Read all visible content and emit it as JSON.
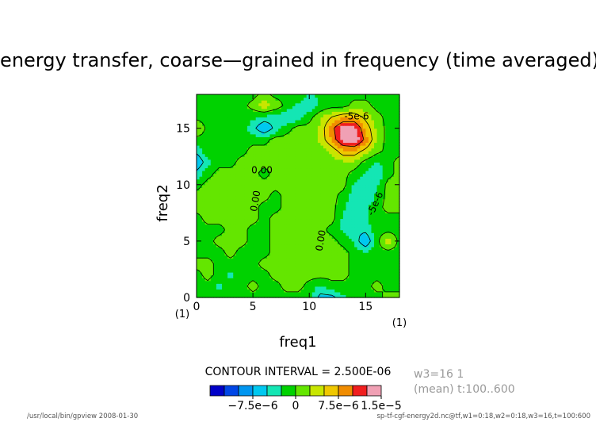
{
  "chart_data": {
    "type": "heatmap",
    "title": "energy transfer, coarse—grained in frequency (time averaged)",
    "xlabel": "freq1",
    "ylabel": "freq2",
    "xlim": [
      0,
      18
    ],
    "ylim": [
      0,
      18
    ],
    "x_ticks": [
      "0",
      "5",
      "10",
      "15"
    ],
    "y_ticks": [
      "0",
      "5",
      "10",
      "15"
    ],
    "x_tick_values": [
      0,
      5,
      10,
      15
    ],
    "y_tick_values": [
      0,
      5,
      10,
      15
    ],
    "x_axis_note": "(1)",
    "x_axis_note_right": "(1)",
    "contour_interval_text": "CONTOUR INTERVAL = 2.500E-06",
    "contour_labels": [
      "-5e-6",
      "0.00",
      "0.00",
      "0.00",
      "-5e-6"
    ],
    "colorbar": {
      "colors": [
        "#0000c8",
        "#0046e6",
        "#0096f0",
        "#00c8f0",
        "#14e6b4",
        "#00d200",
        "#64e600",
        "#c8e600",
        "#f0c800",
        "#f08c00",
        "#f01e1e",
        "#f0a0b4"
      ],
      "tick_labels": [
        "−7.5e−6",
        "0",
        "7.5e−6",
        "1.5e−5"
      ],
      "tick_values": [
        -7.5e-06,
        0,
        7.5e-06,
        1.5e-05
      ],
      "bounds": [
        -1.5e-05,
        -1.25e-05,
        -1e-05,
        -7.5e-06,
        -5e-06,
        -2.5e-06,
        0,
        2.5e-06,
        5e-06,
        7.5e-06,
        1e-05,
        1.25e-05,
        1.5e-05
      ]
    },
    "grid": false,
    "values_note": "grid values approximate, in energy transfer units",
    "x": [
      0,
      1,
      2,
      3,
      4,
      5,
      6,
      7,
      8,
      9,
      10,
      11,
      12,
      13,
      14,
      15,
      16,
      17,
      18
    ],
    "y": [
      0,
      1,
      2,
      3,
      4,
      5,
      6,
      7,
      8,
      9,
      10,
      11,
      12,
      13,
      14,
      15,
      16,
      17,
      18
    ],
    "z": [
      [
        -1e-06,
        -1e-06,
        -1e-06,
        -2e-06,
        -2e-06,
        -1e-06,
        -1e-06,
        -1e-06,
        -1e-06,
        -1e-06,
        -2e-06,
        -6e-06,
        -6e-06,
        -3e-06,
        -2e-06,
        -2e-06,
        -1e-06,
        1e-06,
        1e-06
      ],
      [
        -1e-06,
        -1e-06,
        -3e-06,
        -1e-06,
        -1e-06,
        1e-06,
        -1e-06,
        -1e-06,
        1e-06,
        1e-06,
        -1e-06,
        -3e-06,
        -1e-06,
        -1e-06,
        -1e-06,
        -1e-06,
        1e-06,
        -1e-06,
        -1e-06
      ],
      [
        -1e-06,
        1e-06,
        -1e-06,
        -3e-06,
        -1e-06,
        -1e-06,
        -1e-06,
        1e-06,
        1e-06,
        1e-06,
        1e-06,
        1e-06,
        1e-06,
        1e-06,
        -1e-06,
        -1e-06,
        -1e-06,
        -1e-06,
        -1e-06
      ],
      [
        1e-06,
        1e-06,
        -1e-06,
        -1e-06,
        -1e-06,
        -1e-06,
        1e-06,
        1e-06,
        1e-06,
        1e-06,
        1e-06,
        1e-06,
        1e-06,
        1e-06,
        -1e-06,
        -1e-06,
        -1e-06,
        -1e-06,
        -1e-06
      ],
      [
        -1e-06,
        -1e-06,
        -1e-06,
        1e-06,
        -1e-06,
        -1e-06,
        -1e-06,
        1e-06,
        1e-06,
        1e-06,
        1e-06,
        1e-06,
        1e-06,
        1e-06,
        -1e-06,
        -2e-06,
        -1e-06,
        -1e-06,
        -1e-06
      ],
      [
        -1e-06,
        -1e-06,
        1e-06,
        1e-06,
        1e-06,
        -1e-06,
        -1e-06,
        1e-06,
        1e-06,
        1e-06,
        1e-06,
        1e-06,
        1e-06,
        -1e-06,
        -3e-06,
        -8e-06,
        -1e-06,
        4e-06,
        -1e-06
      ],
      [
        -1e-06,
        -1e-06,
        -1e-06,
        1e-06,
        1e-06,
        -1e-06,
        -1e-06,
        1e-06,
        1e-06,
        1e-06,
        1e-06,
        1e-06,
        -1e-06,
        -3e-06,
        -5e-06,
        -4e-06,
        -1e-06,
        -1e-06,
        -1e-06
      ],
      [
        -1e-06,
        1e-06,
        1e-06,
        1e-06,
        1e-06,
        1e-06,
        -1e-06,
        1e-06,
        1e-06,
        1e-06,
        1e-06,
        1e-06,
        1e-06,
        -3e-06,
        -5e-06,
        -3e-06,
        -1e-06,
        -1e-06,
        -1e-06
      ],
      [
        1e-06,
        1e-06,
        1e-06,
        1e-06,
        1e-06,
        1e-06,
        -1e-06,
        -1e-06,
        1e-06,
        1e-06,
        1e-06,
        1e-06,
        1e-06,
        -2e-06,
        -5e-06,
        -3e-06,
        -1e-06,
        1e-06,
        1e-06
      ],
      [
        1e-06,
        1e-06,
        1e-06,
        1e-06,
        1e-06,
        1e-06,
        1e-06,
        -1e-06,
        1e-06,
        1e-06,
        1e-06,
        1e-06,
        1e-06,
        -1e-06,
        -4e-06,
        -5e-06,
        -2e-06,
        1e-06,
        1e-06
      ],
      [
        -1e-06,
        1e-06,
        1e-06,
        1e-06,
        1e-06,
        1e-06,
        1e-06,
        1e-06,
        1e-06,
        1e-06,
        1e-06,
        1e-06,
        1e-06,
        1e-06,
        -3e-06,
        -5e-06,
        -3e-06,
        1e-06,
        1e-06
      ],
      [
        -4e-06,
        -1e-06,
        1e-06,
        1e-06,
        1e-06,
        1e-06,
        -1e-06,
        1e-06,
        1e-06,
        1e-06,
        1e-06,
        1e-06,
        1e-06,
        1e-06,
        -1e-06,
        -3e-06,
        -5e-06,
        -1e-06,
        1e-06
      ],
      [
        -8e-06,
        -3e-06,
        -1e-06,
        -1e-06,
        1e-06,
        1e-06,
        1e-06,
        1e-06,
        1e-06,
        1e-06,
        1e-06,
        1e-06,
        1e-06,
        2e-06,
        2e-06,
        -1e-06,
        -3e-06,
        -1e-06,
        1e-06
      ],
      [
        -4e-06,
        -1e-06,
        -1e-06,
        -1e-06,
        -1e-06,
        1e-06,
        1e-06,
        1e-06,
        1e-06,
        1e-06,
        1e-06,
        1e-06,
        3e-06,
        7e-06,
        7e-06,
        4e-06,
        1e-06,
        -1e-06,
        -1e-06
      ],
      [
        -1e-06,
        -1e-06,
        -1e-06,
        -1e-06,
        -1e-06,
        -1e-06,
        -1e-06,
        1e-06,
        1e-06,
        1e-06,
        1e-06,
        3e-06,
        8e-06,
        1.35e-05,
        1.5e-05,
        9e-06,
        2e-06,
        -1e-06,
        -1e-06
      ],
      [
        3e-06,
        -1e-06,
        -1e-06,
        -1e-06,
        -1e-06,
        -4e-06,
        -8e-06,
        -4e-06,
        -1e-06,
        1e-06,
        1e-06,
        3e-06,
        9e-06,
        1.4e-05,
        1.4e-05,
        7e-06,
        2e-06,
        -1e-06,
        -1e-06
      ],
      [
        -1e-06,
        -1e-06,
        -1e-06,
        -1e-06,
        -1e-06,
        -2e-06,
        -3e-06,
        -4e-06,
        -5e-06,
        -4e-06,
        -1e-06,
        2e-06,
        5e-06,
        7e-06,
        7e-06,
        4e-06,
        1e-06,
        -1e-06,
        -1e-06
      ],
      [
        -1e-06,
        -1e-06,
        -1e-06,
        -1e-06,
        -1e-06,
        1e-06,
        4e-06,
        2e-06,
        -1e-06,
        -3e-06,
        -4e-06,
        -2e-06,
        -1e-06,
        -1e-06,
        1e-06,
        1e-06,
        -1e-06,
        -1e-06,
        -1e-06
      ],
      [
        -1e-06,
        -1e-06,
        -1e-06,
        -1e-06,
        -1e-06,
        -1e-06,
        1e-06,
        -1e-06,
        -1e-06,
        -1e-06,
        -3e-06,
        -2e-06,
        -1e-06,
        -1e-06,
        -1e-06,
        -1e-06,
        -1e-06,
        -1e-06,
        -1e-06
      ]
    ]
  },
  "side_info": {
    "line1": "w3=16 1",
    "line2": "(mean) t:100..600"
  },
  "footer": {
    "left": "/usr/local/bin/gpview  2008-01-30",
    "right": "sp-tf-cgf-energy2d.nc@tf,w1=0:18,w2=0:18,w3=16,t=100:600"
  }
}
